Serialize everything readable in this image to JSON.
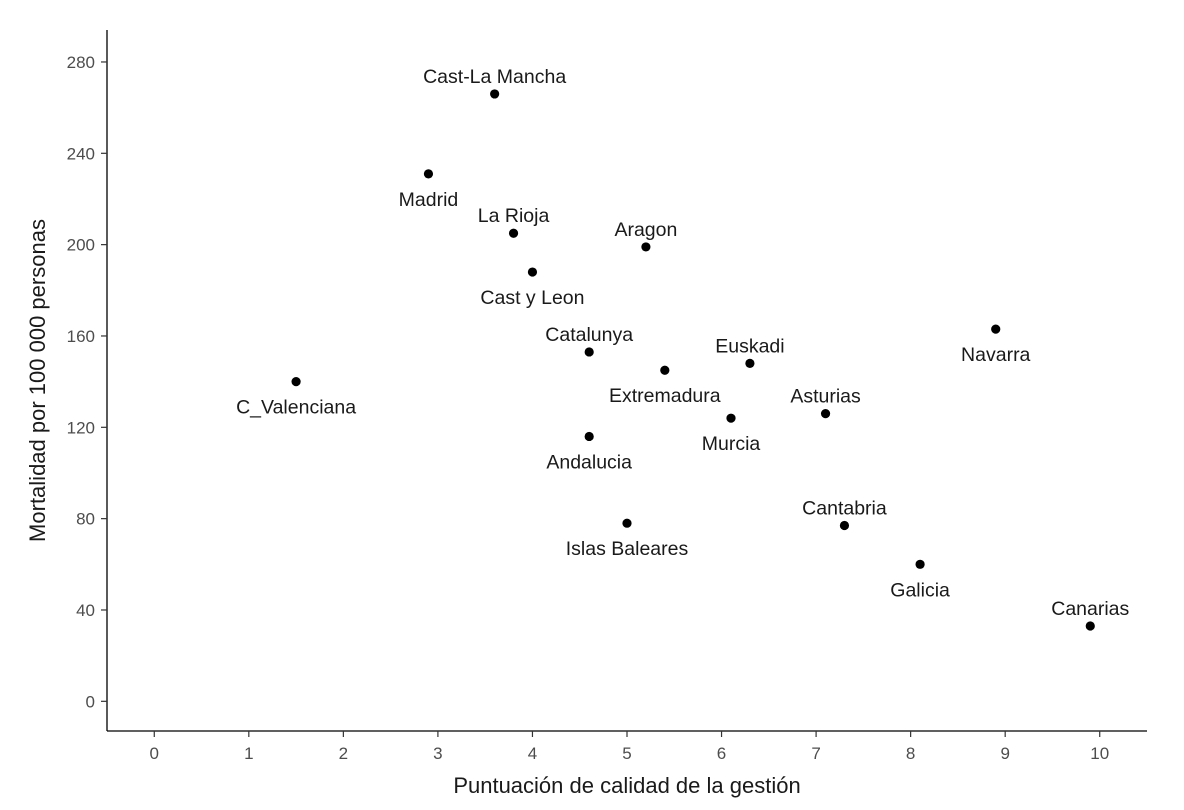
{
  "chart_data": {
    "type": "scatter",
    "title": "",
    "xlabel": "Puntuación de calidad de la gestión",
    "ylabel": "Mortalidad por 100 000 personas",
    "xlim": [
      -0.5,
      10.5
    ],
    "ylim": [
      -13,
      294
    ],
    "xticks": [
      "0",
      "1",
      "2",
      "3",
      "4",
      "5",
      "6",
      "7",
      "8",
      "9",
      "10"
    ],
    "yticks": [
      "0",
      "40",
      "80",
      "120",
      "160",
      "200",
      "240",
      "280"
    ],
    "grid": false,
    "legend": "none",
    "point_color": "#000000",
    "points": [
      {
        "label": "Cast-La Mancha",
        "x": 3.6,
        "y": 266,
        "label_pos": "above"
      },
      {
        "label": "Madrid",
        "x": 2.9,
        "y": 231,
        "label_pos": "below"
      },
      {
        "label": "La Rioja",
        "x": 3.8,
        "y": 205,
        "label_pos": "above"
      },
      {
        "label": "Aragon",
        "x": 5.2,
        "y": 199,
        "label_pos": "above"
      },
      {
        "label": "Cast y Leon",
        "x": 4.0,
        "y": 188,
        "label_pos": "below"
      },
      {
        "label": "Navarra",
        "x": 8.9,
        "y": 163,
        "label_pos": "below"
      },
      {
        "label": "Catalunya",
        "x": 4.6,
        "y": 153,
        "label_pos": "above"
      },
      {
        "label": "Euskadi",
        "x": 6.3,
        "y": 148,
        "label_pos": "above"
      },
      {
        "label": "Extremadura",
        "x": 5.4,
        "y": 145,
        "label_pos": "below"
      },
      {
        "label": "C_Valenciana",
        "x": 1.5,
        "y": 140,
        "label_pos": "below"
      },
      {
        "label": "Asturias",
        "x": 7.1,
        "y": 126,
        "label_pos": "above"
      },
      {
        "label": "Murcia",
        "x": 6.1,
        "y": 124,
        "label_pos": "below"
      },
      {
        "label": "Andalucia",
        "x": 4.6,
        "y": 116,
        "label_pos": "below"
      },
      {
        "label": "Islas Baleares",
        "x": 5.0,
        "y": 78,
        "label_pos": "below"
      },
      {
        "label": "Cantabria",
        "x": 7.3,
        "y": 77,
        "label_pos": "above"
      },
      {
        "label": "Galicia",
        "x": 8.1,
        "y": 60,
        "label_pos": "below"
      },
      {
        "label": "Canarias",
        "x": 9.9,
        "y": 33,
        "label_pos": "above"
      }
    ]
  }
}
